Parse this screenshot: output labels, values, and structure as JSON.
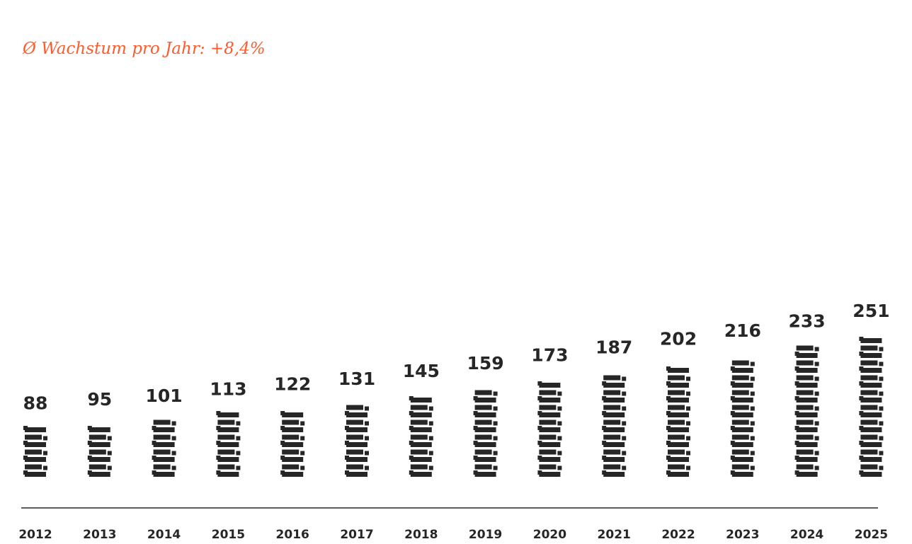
{
  "subtitle": "Ø Wachstum pro Jahr: +8,4%",
  "colors": {
    "accent": "#ff5a2c",
    "bars": "#262626",
    "baseline": "#262626"
  },
  "chart_data": {
    "type": "bar",
    "categories": [
      "2012",
      "2013",
      "2014",
      "2015",
      "2016",
      "2017",
      "2018",
      "2019",
      "2020",
      "2021",
      "2022",
      "2023",
      "2024",
      "2025"
    ],
    "values": [
      88,
      95,
      101,
      113,
      122,
      131,
      145,
      159,
      173,
      187,
      202,
      216,
      233,
      251
    ],
    "title": "",
    "subtitle": "Ø Wachstum pro Jahr: +8,4%",
    "xlabel": "",
    "ylabel": "",
    "ylim": [
      0,
      251
    ],
    "grid": false,
    "legend": "none",
    "mark_style": "stacked-bricks"
  }
}
